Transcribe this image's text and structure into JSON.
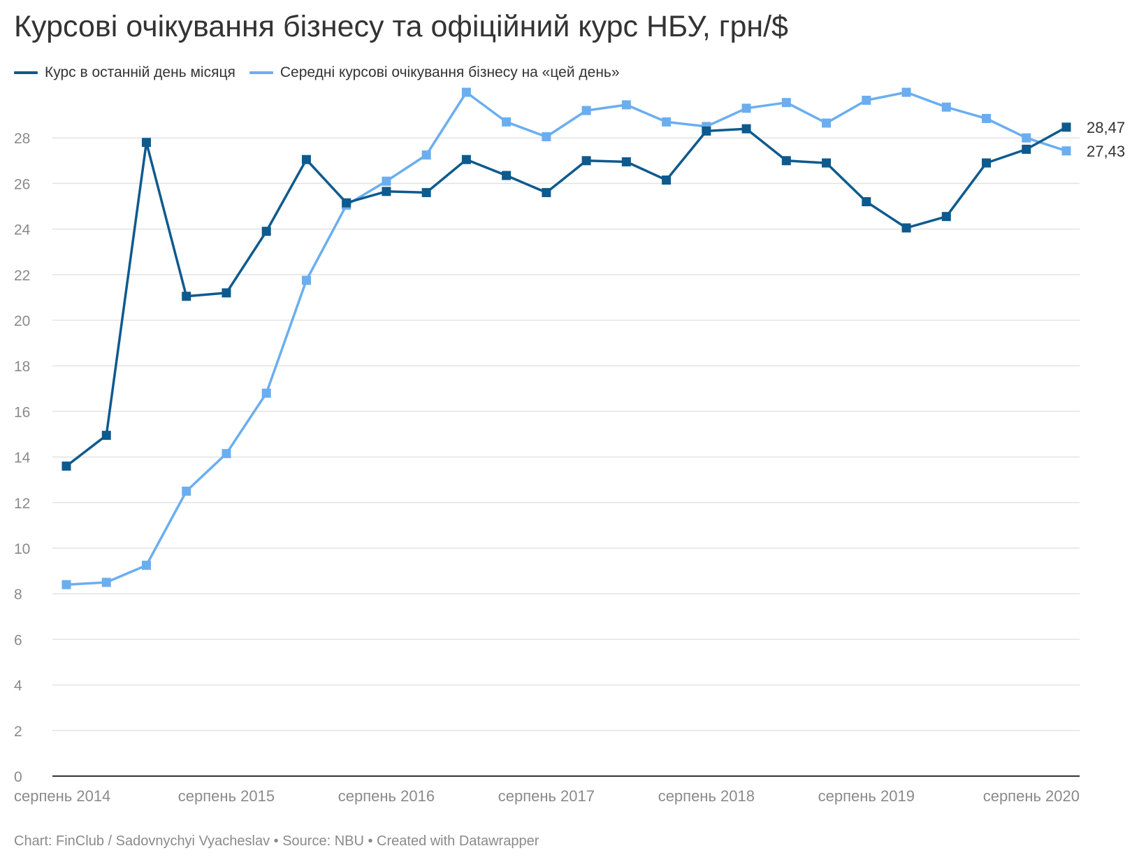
{
  "title": "Курсові очікування бізнесу та офіційний курс НБУ, грн/$",
  "footer": "Chart: FinClub / Sadovnychyi Vyacheslav • Source: NBU • Created with Datawrapper",
  "colors": {
    "series1": "#0d5a8e",
    "series2": "#6aaef0",
    "grid": "#e3e3e3",
    "axis": "#333333",
    "tick_text": "#8a8a8a"
  },
  "chart_data": {
    "type": "line",
    "title": "Курсові очікування бізнесу та офіційний курс НБУ, грн/$",
    "xlabel": "",
    "ylabel": "",
    "ylim": [
      0,
      30
    ],
    "y_ticks": [
      0,
      2,
      4,
      6,
      8,
      10,
      12,
      14,
      16,
      18,
      20,
      22,
      24,
      26,
      28
    ],
    "x_tick_labels": [
      "серпень 2014",
      "серпень 2015",
      "серпень 2016",
      "серпень 2017",
      "серпень 2018",
      "серпень 2019",
      "серпень 2020"
    ],
    "grid": true,
    "legend_position": "top-left",
    "series": [
      {
        "name": "Курс в останній день місяця",
        "color": "#0d5a8e",
        "values": [
          13.6,
          14.95,
          27.8,
          21.05,
          21.2,
          23.9,
          27.05,
          25.15,
          25.65,
          25.6,
          27.05,
          26.35,
          25.6,
          27.0,
          26.95,
          26.15,
          28.3,
          28.4,
          27.0,
          26.9,
          25.2,
          24.05,
          24.55,
          26.9,
          27.5,
          28.47
        ],
        "end_label": "28,47"
      },
      {
        "name": "Середні курсові очікування бізнесу на «цей день»",
        "color": "#6aaef0",
        "values": [
          8.4,
          8.5,
          9.25,
          12.5,
          14.15,
          16.8,
          21.75,
          25.05,
          26.1,
          27.25,
          30.0,
          28.7,
          28.05,
          29.2,
          29.45,
          28.7,
          28.5,
          29.3,
          29.55,
          28.65,
          29.65,
          30.0,
          29.35,
          28.85,
          28.0,
          27.43
        ],
        "end_label": "27,43"
      }
    ]
  }
}
